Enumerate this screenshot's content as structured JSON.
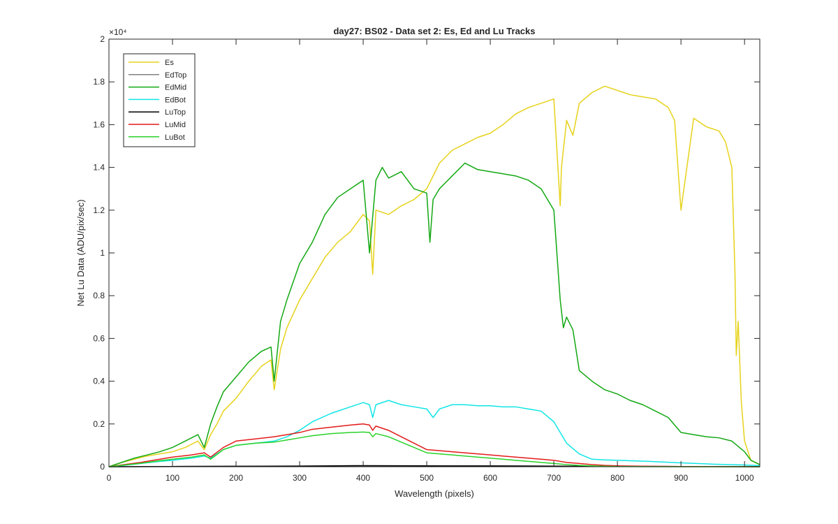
{
  "chart_data": {
    "type": "line",
    "title": "day27: BS02 - Data set 2: Es, Ed and Lu Tracks",
    "xlabel": "Wavelength (pixels)",
    "ylabel": "Net Lu Data (ADU/pix/sec)",
    "y_exponent_label": "×10⁴",
    "xlim": [
      0,
      1024
    ],
    "ylim": [
      0,
      20000
    ],
    "xticks": [
      0,
      100,
      200,
      300,
      400,
      500,
      600,
      700,
      800,
      900,
      1000
    ],
    "xtick_labels": [
      "0",
      "100",
      "200",
      "300",
      "400",
      "500",
      "600",
      "700",
      "800",
      "900",
      "1000"
    ],
    "yticks": [
      0,
      2000,
      4000,
      6000,
      8000,
      10000,
      12000,
      14000,
      16000,
      18000,
      20000
    ],
    "ytick_labels": [
      "0",
      "0.2",
      "0.4",
      "0.6",
      "0.8",
      "1",
      "1.2",
      "1.4",
      "1.6",
      "1.8",
      "2"
    ],
    "grid": false,
    "legend_position": "top-left",
    "series": [
      {
        "name": "Es",
        "color": "#e6d21a",
        "x": [
          0,
          20,
          40,
          60,
          80,
          100,
          120,
          140,
          150,
          160,
          170,
          180,
          200,
          220,
          240,
          255,
          260,
          270,
          280,
          300,
          320,
          340,
          360,
          380,
          400,
          410,
          415,
          420,
          440,
          460,
          480,
          500,
          520,
          540,
          560,
          580,
          600,
          620,
          640,
          660,
          680,
          700,
          710,
          712,
          720,
          730,
          740,
          760,
          780,
          800,
          820,
          840,
          860,
          880,
          890,
          900,
          920,
          940,
          960,
          970,
          980,
          985,
          987,
          990,
          995,
          1000,
          1010,
          1024
        ],
        "y": [
          0,
          200,
          350,
          500,
          600,
          700,
          900,
          1200,
          800,
          1500,
          2000,
          2600,
          3200,
          4000,
          4700,
          5000,
          3600,
          5500,
          6500,
          7800,
          8800,
          9800,
          10500,
          11000,
          11800,
          11500,
          9000,
          12000,
          11800,
          12200,
          12500,
          13000,
          14200,
          14800,
          15100,
          15400,
          15600,
          16000,
          16500,
          16800,
          17000,
          17200,
          12200,
          14000,
          16200,
          15500,
          17000,
          17500,
          17800,
          17600,
          17400,
          17300,
          17200,
          16800,
          16200,
          12000,
          16300,
          15900,
          15700,
          15200,
          14000,
          9000,
          5200,
          6800,
          3000,
          1200,
          300,
          100
        ]
      },
      {
        "name": "EdTop",
        "color": "#808080",
        "x": [
          0,
          100,
          200,
          300,
          400,
          500,
          600,
          700,
          800,
          900,
          1000,
          1024
        ],
        "y": [
          0,
          10,
          20,
          30,
          40,
          40,
          40,
          30,
          20,
          10,
          5,
          0
        ]
      },
      {
        "name": "EdMid",
        "color": "#12a812",
        "x": [
          0,
          20,
          40,
          60,
          80,
          100,
          120,
          140,
          150,
          160,
          170,
          180,
          200,
          220,
          240,
          255,
          260,
          270,
          280,
          300,
          320,
          340,
          360,
          380,
          400,
          410,
          420,
          430,
          440,
          460,
          480,
          500,
          505,
          510,
          520,
          540,
          560,
          580,
          600,
          620,
          640,
          660,
          680,
          700,
          710,
          715,
          720,
          730,
          740,
          760,
          780,
          800,
          820,
          840,
          860,
          880,
          900,
          920,
          940,
          960,
          980,
          1000,
          1010,
          1024
        ],
        "y": [
          0,
          200,
          400,
          550,
          700,
          900,
          1200,
          1500,
          900,
          2000,
          2800,
          3500,
          4200,
          4900,
          5400,
          5600,
          4000,
          6800,
          7800,
          9500,
          10500,
          11800,
          12600,
          13000,
          13400,
          10000,
          13400,
          14000,
          13500,
          13800,
          13000,
          12800,
          10500,
          12500,
          13000,
          13600,
          14200,
          13900,
          13800,
          13700,
          13600,
          13400,
          13000,
          12000,
          7800,
          6500,
          7000,
          6400,
          4500,
          4000,
          3600,
          3400,
          3100,
          2900,
          2600,
          2300,
          1600,
          1500,
          1400,
          1350,
          1200,
          700,
          300,
          100
        ]
      },
      {
        "name": "EdBot",
        "color": "#11e5e5",
        "x": [
          0,
          20,
          50,
          80,
          100,
          130,
          150,
          160,
          180,
          200,
          230,
          260,
          280,
          300,
          320,
          350,
          380,
          400,
          410,
          415,
          420,
          440,
          460,
          480,
          500,
          510,
          520,
          540,
          560,
          580,
          600,
          620,
          640,
          660,
          680,
          700,
          710,
          720,
          740,
          760,
          780,
          800,
          850,
          900,
          950,
          1000,
          1024
        ],
        "y": [
          0,
          50,
          150,
          250,
          300,
          400,
          500,
          400,
          800,
          1000,
          1100,
          1200,
          1400,
          1700,
          2100,
          2500,
          2800,
          3000,
          2900,
          2300,
          2900,
          3100,
          2900,
          2800,
          2700,
          2300,
          2700,
          2900,
          2900,
          2850,
          2850,
          2800,
          2800,
          2700,
          2600,
          2100,
          1600,
          1100,
          600,
          350,
          320,
          300,
          250,
          180,
          120,
          80,
          50
        ]
      },
      {
        "name": "LuTop",
        "color": "#000000",
        "x": [
          0,
          100,
          200,
          300,
          400,
          500,
          600,
          700,
          800,
          900,
          1000,
          1024
        ],
        "y": [
          0,
          10,
          20,
          30,
          50,
          40,
          35,
          25,
          15,
          10,
          5,
          0
        ]
      },
      {
        "name": "LuMid",
        "color": "#e31a1a",
        "x": [
          0,
          20,
          50,
          80,
          100,
          130,
          150,
          160,
          180,
          200,
          230,
          260,
          280,
          300,
          320,
          350,
          380,
          400,
          410,
          415,
          420,
          440,
          460,
          480,
          500,
          520,
          540,
          560,
          580,
          600,
          620,
          640,
          660,
          680,
          700,
          720,
          740,
          760,
          780,
          800,
          850,
          900,
          1000,
          1024
        ],
        "y": [
          0,
          80,
          200,
          350,
          450,
          550,
          650,
          450,
          900,
          1200,
          1300,
          1400,
          1500,
          1600,
          1750,
          1850,
          1950,
          2000,
          1950,
          1700,
          1900,
          1700,
          1400,
          1100,
          800,
          750,
          700,
          650,
          600,
          550,
          500,
          450,
          400,
          350,
          300,
          200,
          150,
          100,
          60,
          40,
          20,
          10,
          5,
          0
        ]
      },
      {
        "name": "LuBot",
        "color": "#2ad22a",
        "x": [
          0,
          20,
          50,
          80,
          100,
          130,
          150,
          160,
          180,
          200,
          230,
          260,
          280,
          300,
          320,
          350,
          380,
          400,
          410,
          415,
          420,
          440,
          460,
          480,
          500,
          520,
          540,
          560,
          580,
          600,
          620,
          640,
          660,
          680,
          700,
          720,
          740,
          760,
          780,
          800,
          850,
          900,
          1000,
          1024
        ],
        "y": [
          0,
          60,
          160,
          280,
          350,
          450,
          550,
          350,
          800,
          1000,
          1100,
          1150,
          1250,
          1350,
          1450,
          1550,
          1600,
          1620,
          1600,
          1400,
          1550,
          1400,
          1150,
          900,
          650,
          600,
          550,
          500,
          450,
          400,
          350,
          300,
          250,
          200,
          150,
          100,
          60,
          40,
          20,
          10,
          5,
          0,
          0,
          0
        ]
      }
    ]
  }
}
